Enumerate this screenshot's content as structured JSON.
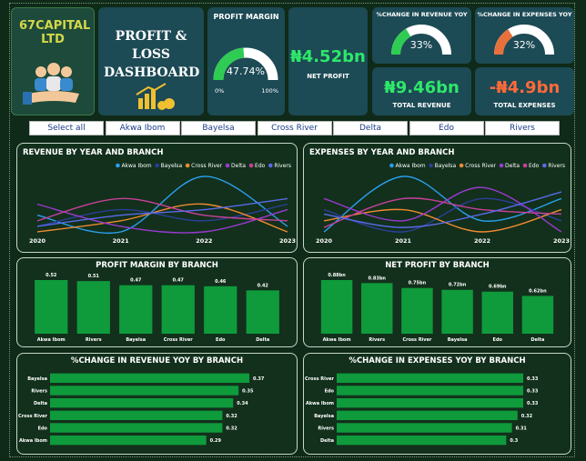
{
  "header": {
    "company": "67CAPITAL LTD",
    "title": "PROFIT & LOSS DASHBOARD"
  },
  "kpis": {
    "net_profit": {
      "value": "₦4.52bn",
      "label": "NET PROFIT"
    },
    "total_revenue": {
      "value": "₦9.46bn",
      "label": "TOTAL REVENUE"
    },
    "total_expenses": {
      "value": "-₦4.9bn",
      "label": "TOTAL EXPENSES"
    }
  },
  "slicer": [
    "Select all",
    "Akwa Ibom",
    "Bayelsa",
    "Cross River",
    "Delta",
    "Edo",
    "Rivers"
  ],
  "chart_data": [
    {
      "type": "gauge",
      "title": "PROFIT MARGIN",
      "value": 47.74,
      "value_label": "47.74%",
      "color": "#2ecc52",
      "ylim": [
        0,
        100
      ],
      "yticks": [
        {
          "value": 0,
          "label": "0%"
        },
        {
          "value": 100,
          "label": "100%"
        }
      ]
    },
    {
      "type": "gauge",
      "title": "%CHANGE IN REVENUE YOY",
      "value": 33,
      "value_label": "33%",
      "color": "#2ecc52",
      "ylim": [
        0,
        100
      ]
    },
    {
      "type": "gauge",
      "title": "%CHANGE IN EXPENSES YOY",
      "value": 32,
      "value_label": "32%",
      "color": "#e8703a",
      "ylim": [
        0,
        100
      ]
    },
    {
      "type": "line",
      "title": "REVENUE BY YEAR AND BRANCH",
      "categories": [
        "2020",
        "2021",
        "2022",
        "2023"
      ],
      "series": [
        {
          "name": "Akwa Ibom",
          "color": "#2aa0f0",
          "values": [
            1.6,
            1.45,
            1.95,
            1.5
          ]
        },
        {
          "name": "Bayelsa",
          "color": "#2a3f9a",
          "values": [
            1.5,
            1.65,
            1.55,
            1.7
          ]
        },
        {
          "name": "Cross River",
          "color": "#f08a30",
          "values": [
            1.45,
            1.55,
            1.7,
            1.45
          ]
        },
        {
          "name": "Delta",
          "color": "#9a3ad0",
          "values": [
            1.7,
            1.5,
            1.45,
            1.65
          ]
        },
        {
          "name": "Edo",
          "color": "#c8409a",
          "values": [
            1.55,
            1.75,
            1.6,
            1.55
          ]
        },
        {
          "name": "Rivers",
          "color": "#5a6ae8",
          "values": [
            1.5,
            1.6,
            1.65,
            1.75
          ]
        }
      ]
    },
    {
      "type": "line",
      "title": "EXPENSES BY YEAR AND BRANCH",
      "categories": [
        "2020",
        "2021",
        "2022",
        "2023"
      ],
      "series": [
        {
          "name": "Akwa Ibom",
          "color": "#2aa0f0",
          "values": [
            0.7,
            0.95,
            0.75,
            0.85
          ]
        },
        {
          "name": "Bayelsa",
          "color": "#2a3f9a",
          "values": [
            0.8,
            0.7,
            0.85,
            0.75
          ]
        },
        {
          "name": "Cross River",
          "color": "#f08a30",
          "values": [
            0.75,
            0.8,
            0.7,
            0.8
          ]
        },
        {
          "name": "Delta",
          "color": "#9a3ad0",
          "values": [
            0.85,
            0.75,
            0.9,
            0.7
          ]
        },
        {
          "name": "Edo",
          "color": "#c8409a",
          "values": [
            0.72,
            0.85,
            0.8,
            0.78
          ]
        },
        {
          "name": "Rivers",
          "color": "#5a6ae8",
          "values": [
            0.78,
            0.72,
            0.78,
            0.88
          ]
        }
      ]
    },
    {
      "type": "bar",
      "title": "PROFIT MARGIN BY BRANCH",
      "color": "#0f9a3c",
      "categories": [
        "Akwa Ibom",
        "Rivers",
        "Bayelsa",
        "Cross River",
        "Edo",
        "Delta"
      ],
      "values": [
        0.52,
        0.51,
        0.47,
        0.47,
        0.46,
        0.42
      ]
    },
    {
      "type": "bar",
      "title": "NET PROFIT BY BRANCH",
      "color": "#0f9a3c",
      "categories": [
        "Akwa Ibom",
        "Rivers",
        "Cross River",
        "Bayelsa",
        "Edo",
        "Delta"
      ],
      "values": [
        0.88,
        0.83,
        0.75,
        0.72,
        0.69,
        0.62
      ],
      "value_labels": [
        "0.88bn",
        "0.83bn",
        "0.75bn",
        "0.72bn",
        "0.69bn",
        "0.62bn"
      ]
    },
    {
      "type": "hbar",
      "title": "%CHANGE IN REVENUE YOY BY BRANCH",
      "color": "#0f9a3c",
      "categories": [
        "Bayelsa",
        "Rivers",
        "Delta",
        "Cross River",
        "Edo",
        "Akwa Ibom"
      ],
      "values": [
        0.37,
        0.35,
        0.34,
        0.32,
        0.32,
        0.29
      ]
    },
    {
      "type": "hbar",
      "title": "%CHANGE IN EXPENSES YOY BY BRANCH",
      "color": "#0f9a3c",
      "categories": [
        "Cross River",
        "Edo",
        "Akwa Ibom",
        "Bayelsa",
        "Rivers",
        "Delta"
      ],
      "values": [
        0.33,
        0.33,
        0.33,
        0.32,
        0.31,
        0.3
      ]
    }
  ]
}
